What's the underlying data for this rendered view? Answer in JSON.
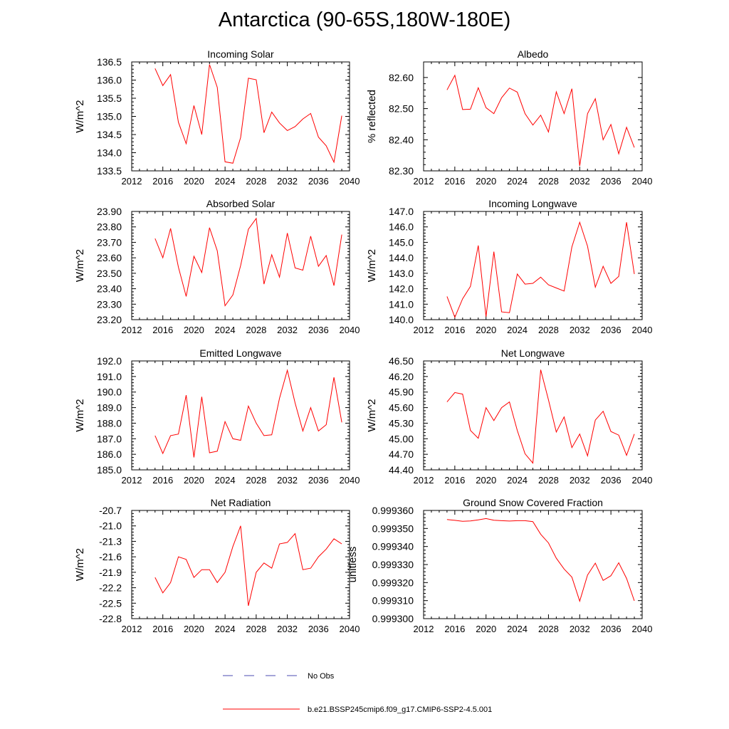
{
  "title": "Antarctica (90-65S,180W-180E)",
  "legend": {
    "obs_label": "No Obs",
    "obs_color": "#4b4bb0",
    "model_label": "b.e21.BSSP245cmip6.f09_g17.CMIP6-SSP2-4.5.001",
    "model_color": "#ff0000"
  },
  "chart_data": [
    {
      "type": "line",
      "title": "Incoming Solar",
      "ylabel": "W/m^2",
      "xlim": [
        2012,
        2040
      ],
      "ylim": [
        133.5,
        136.5
      ],
      "xticks": [
        2012,
        2016,
        2020,
        2024,
        2028,
        2032,
        2036,
        2040
      ],
      "yticks": [
        133.5,
        134.0,
        134.5,
        135.0,
        135.5,
        136.0,
        136.5
      ],
      "ytick_labels": [
        "133.5",
        "134.0",
        "134.5",
        "135.0",
        "135.5",
        "136.0",
        "136.5"
      ],
      "x": [
        2015,
        2016,
        2017,
        2018,
        2019,
        2020,
        2021,
        2022,
        2023,
        2024,
        2025,
        2026,
        2027,
        2028,
        2029,
        2030,
        2031,
        2032,
        2033,
        2034,
        2035,
        2036,
        2037,
        2038,
        2039
      ],
      "values": [
        136.32,
        135.85,
        136.15,
        134.84,
        134.25,
        135.3,
        134.5,
        136.43,
        135.8,
        133.75,
        133.71,
        134.42,
        136.05,
        136.01,
        134.55,
        135.12,
        134.82,
        134.61,
        134.72,
        134.93,
        135.08,
        134.43,
        134.19,
        133.74,
        135.02
      ]
    },
    {
      "type": "line",
      "title": "Albedo",
      "ylabel": "% reflected",
      "xlim": [
        2012,
        2040
      ],
      "ylim": [
        82.3,
        82.65
      ],
      "xticks": [
        2012,
        2016,
        2020,
        2024,
        2028,
        2032,
        2036,
        2040
      ],
      "yticks": [
        82.3,
        82.4,
        82.5,
        82.6
      ],
      "ytick_labels": [
        "82.30",
        "82.40",
        "82.50",
        "82.60"
      ],
      "x": [
        2015,
        2016,
        2017,
        2018,
        2019,
        2020,
        2021,
        2022,
        2023,
        2024,
        2025,
        2026,
        2027,
        2028,
        2029,
        2030,
        2031,
        2032,
        2033,
        2034,
        2035,
        2036,
        2037,
        2038,
        2039
      ],
      "values": [
        82.56,
        82.607,
        82.497,
        82.498,
        82.567,
        82.503,
        82.484,
        82.535,
        82.566,
        82.553,
        82.484,
        82.447,
        82.479,
        82.425,
        82.554,
        82.484,
        82.564,
        82.316,
        82.484,
        82.532,
        82.4,
        82.449,
        82.355,
        82.44,
        82.375
      ]
    },
    {
      "type": "line",
      "title": "Absorbed Solar",
      "ylabel": "W/m^2",
      "xlim": [
        2012,
        2040
      ],
      "ylim": [
        23.2,
        23.9
      ],
      "xticks": [
        2012,
        2016,
        2020,
        2024,
        2028,
        2032,
        2036,
        2040
      ],
      "yticks": [
        23.2,
        23.3,
        23.4,
        23.5,
        23.6,
        23.7,
        23.8,
        23.9
      ],
      "ytick_labels": [
        "23.20",
        "23.30",
        "23.40",
        "23.50",
        "23.60",
        "23.70",
        "23.80",
        "23.90"
      ],
      "x": [
        2015,
        2016,
        2017,
        2018,
        2019,
        2020,
        2021,
        2022,
        2023,
        2024,
        2025,
        2026,
        2027,
        2028,
        2029,
        2030,
        2031,
        2032,
        2033,
        2034,
        2035,
        2036,
        2037,
        2038,
        2039
      ],
      "values": [
        23.725,
        23.6,
        23.79,
        23.54,
        23.35,
        23.61,
        23.505,
        23.795,
        23.645,
        23.29,
        23.36,
        23.55,
        23.785,
        23.855,
        23.43,
        23.62,
        23.475,
        23.76,
        23.535,
        23.52,
        23.74,
        23.545,
        23.615,
        23.42,
        23.75
      ]
    },
    {
      "type": "line",
      "title": "Incoming Longwave",
      "ylabel": "W/m^2",
      "xlim": [
        2012,
        2040
      ],
      "ylim": [
        140.0,
        147.0
      ],
      "xticks": [
        2012,
        2016,
        2020,
        2024,
        2028,
        2032,
        2036,
        2040
      ],
      "yticks": [
        140.0,
        141.0,
        142.0,
        143.0,
        144.0,
        145.0,
        146.0,
        147.0
      ],
      "ytick_labels": [
        "140.0",
        "141.0",
        "142.0",
        "143.0",
        "144.0",
        "145.0",
        "146.0",
        "147.0"
      ],
      "x": [
        2015,
        2016,
        2017,
        2018,
        2019,
        2020,
        2021,
        2022,
        2023,
        2024,
        2025,
        2026,
        2027,
        2028,
        2029,
        2030,
        2031,
        2032,
        2033,
        2034,
        2035,
        2036,
        2037,
        2038,
        2039
      ],
      "values": [
        141.5,
        140.15,
        141.35,
        142.15,
        144.8,
        140.2,
        144.4,
        140.5,
        140.45,
        142.95,
        142.3,
        142.35,
        142.75,
        142.25,
        142.05,
        141.85,
        144.7,
        146.3,
        144.75,
        142.1,
        143.45,
        142.35,
        142.8,
        146.3,
        142.95
      ]
    },
    {
      "type": "line",
      "title": "Emitted Longwave",
      "ylabel": "W/m^2",
      "xlim": [
        2012,
        2040
      ],
      "ylim": [
        185.0,
        192.0
      ],
      "xticks": [
        2012,
        2016,
        2020,
        2024,
        2028,
        2032,
        2036,
        2040
      ],
      "yticks": [
        185.0,
        186.0,
        187.0,
        188.0,
        189.0,
        190.0,
        191.0,
        192.0
      ],
      "ytick_labels": [
        "185.0",
        "186.0",
        "187.0",
        "188.0",
        "189.0",
        "190.0",
        "191.0",
        "192.0"
      ],
      "x": [
        2015,
        2016,
        2017,
        2018,
        2019,
        2020,
        2021,
        2022,
        2023,
        2024,
        2025,
        2026,
        2027,
        2028,
        2029,
        2030,
        2031,
        2032,
        2033,
        2034,
        2035,
        2036,
        2037,
        2038,
        2039
      ],
      "values": [
        187.2,
        186.05,
        187.2,
        187.3,
        189.8,
        185.8,
        189.7,
        186.1,
        186.2,
        188.1,
        187.0,
        186.9,
        189.1,
        188.0,
        187.2,
        187.25,
        189.6,
        191.4,
        189.3,
        187.5,
        189.0,
        187.5,
        187.9,
        190.95,
        188.05
      ]
    },
    {
      "type": "line",
      "title": "Net Longwave",
      "ylabel": "W/m^2",
      "xlim": [
        2012,
        2040
      ],
      "ylim": [
        44.4,
        46.5
      ],
      "xticks": [
        2012,
        2016,
        2020,
        2024,
        2028,
        2032,
        2036,
        2040
      ],
      "yticks": [
        44.4,
        44.7,
        45.0,
        45.3,
        45.6,
        45.9,
        46.2,
        46.5
      ],
      "ytick_labels": [
        "44.40",
        "44.70",
        "45.00",
        "45.30",
        "45.60",
        "45.90",
        "46.20",
        "46.50"
      ],
      "x": [
        2015,
        2016,
        2017,
        2018,
        2019,
        2020,
        2021,
        2022,
        2023,
        2024,
        2025,
        2026,
        2027,
        2028,
        2029,
        2030,
        2031,
        2032,
        2033,
        2034,
        2035,
        2036,
        2037,
        2038,
        2039
      ],
      "values": [
        45.71,
        45.89,
        45.86,
        45.16,
        45.01,
        45.6,
        45.35,
        45.6,
        45.71,
        45.16,
        44.71,
        44.53,
        46.33,
        45.75,
        45.13,
        45.42,
        44.83,
        45.09,
        44.67,
        45.36,
        45.53,
        45.14,
        45.07,
        44.68,
        45.09
      ]
    },
    {
      "type": "line",
      "title": "Net Radiation",
      "ylabel": "W/m^2",
      "xlim": [
        2012,
        2040
      ],
      "ylim": [
        -22.8,
        -20.7
      ],
      "xticks": [
        2012,
        2016,
        2020,
        2024,
        2028,
        2032,
        2036,
        2040
      ],
      "yticks": [
        -22.8,
        -22.5,
        -22.2,
        -21.9,
        -21.6,
        -21.3,
        -21.0,
        -20.7
      ],
      "ytick_labels": [
        "-22.8",
        "-22.5",
        "-22.2",
        "-21.9",
        "-21.6",
        "-21.3",
        "-21.0",
        "-20.7"
      ],
      "x": [
        2015,
        2016,
        2017,
        2018,
        2019,
        2020,
        2021,
        2022,
        2023,
        2024,
        2025,
        2026,
        2027,
        2028,
        2029,
        2030,
        2031,
        2032,
        2033,
        2034,
        2035,
        2036,
        2037,
        2038,
        2039
      ],
      "values": [
        -22.0,
        -22.3,
        -22.1,
        -21.6,
        -21.65,
        -22.0,
        -21.85,
        -21.85,
        -22.1,
        -21.9,
        -21.4,
        -21.0,
        -22.55,
        -21.9,
        -21.72,
        -21.82,
        -21.35,
        -21.32,
        -21.15,
        -21.85,
        -21.82,
        -21.6,
        -21.45,
        -21.25,
        -21.35
      ]
    },
    {
      "type": "line",
      "title": "Ground Snow Covered Fraction",
      "ylabel": "unitless",
      "xlim": [
        2012,
        2040
      ],
      "ylim": [
        0.9993,
        0.99936
      ],
      "xticks": [
        2012,
        2016,
        2020,
        2024,
        2028,
        2032,
        2036,
        2040
      ],
      "yticks": [
        0.9993,
        0.99931,
        0.99932,
        0.99933,
        0.99934,
        0.99935,
        0.99936
      ],
      "ytick_labels": [
        "0.999300",
        "0.999310",
        "0.999320",
        "0.999330",
        "0.999340",
        "0.999350",
        "0.999360"
      ],
      "x": [
        2015,
        2016,
        2017,
        2018,
        2019,
        2020,
        2021,
        2022,
        2023,
        2024,
        2025,
        2026,
        2027,
        2028,
        2029,
        2030,
        2031,
        2032,
        2033,
        2034,
        2035,
        2036,
        2037,
        2038,
        2039
      ],
      "values": [
        0.999355,
        0.9993545,
        0.999354,
        0.9993542,
        0.9993548,
        0.9993555,
        0.9993546,
        0.9993543,
        0.9993541,
        0.9993543,
        0.9993543,
        0.9993538,
        0.9993468,
        0.999342,
        0.9993335,
        0.9993275,
        0.999323,
        0.9993097,
        0.9993242,
        0.9993308,
        0.9993212,
        0.9993238,
        0.999331,
        0.9993223,
        0.9993099
      ]
    }
  ]
}
